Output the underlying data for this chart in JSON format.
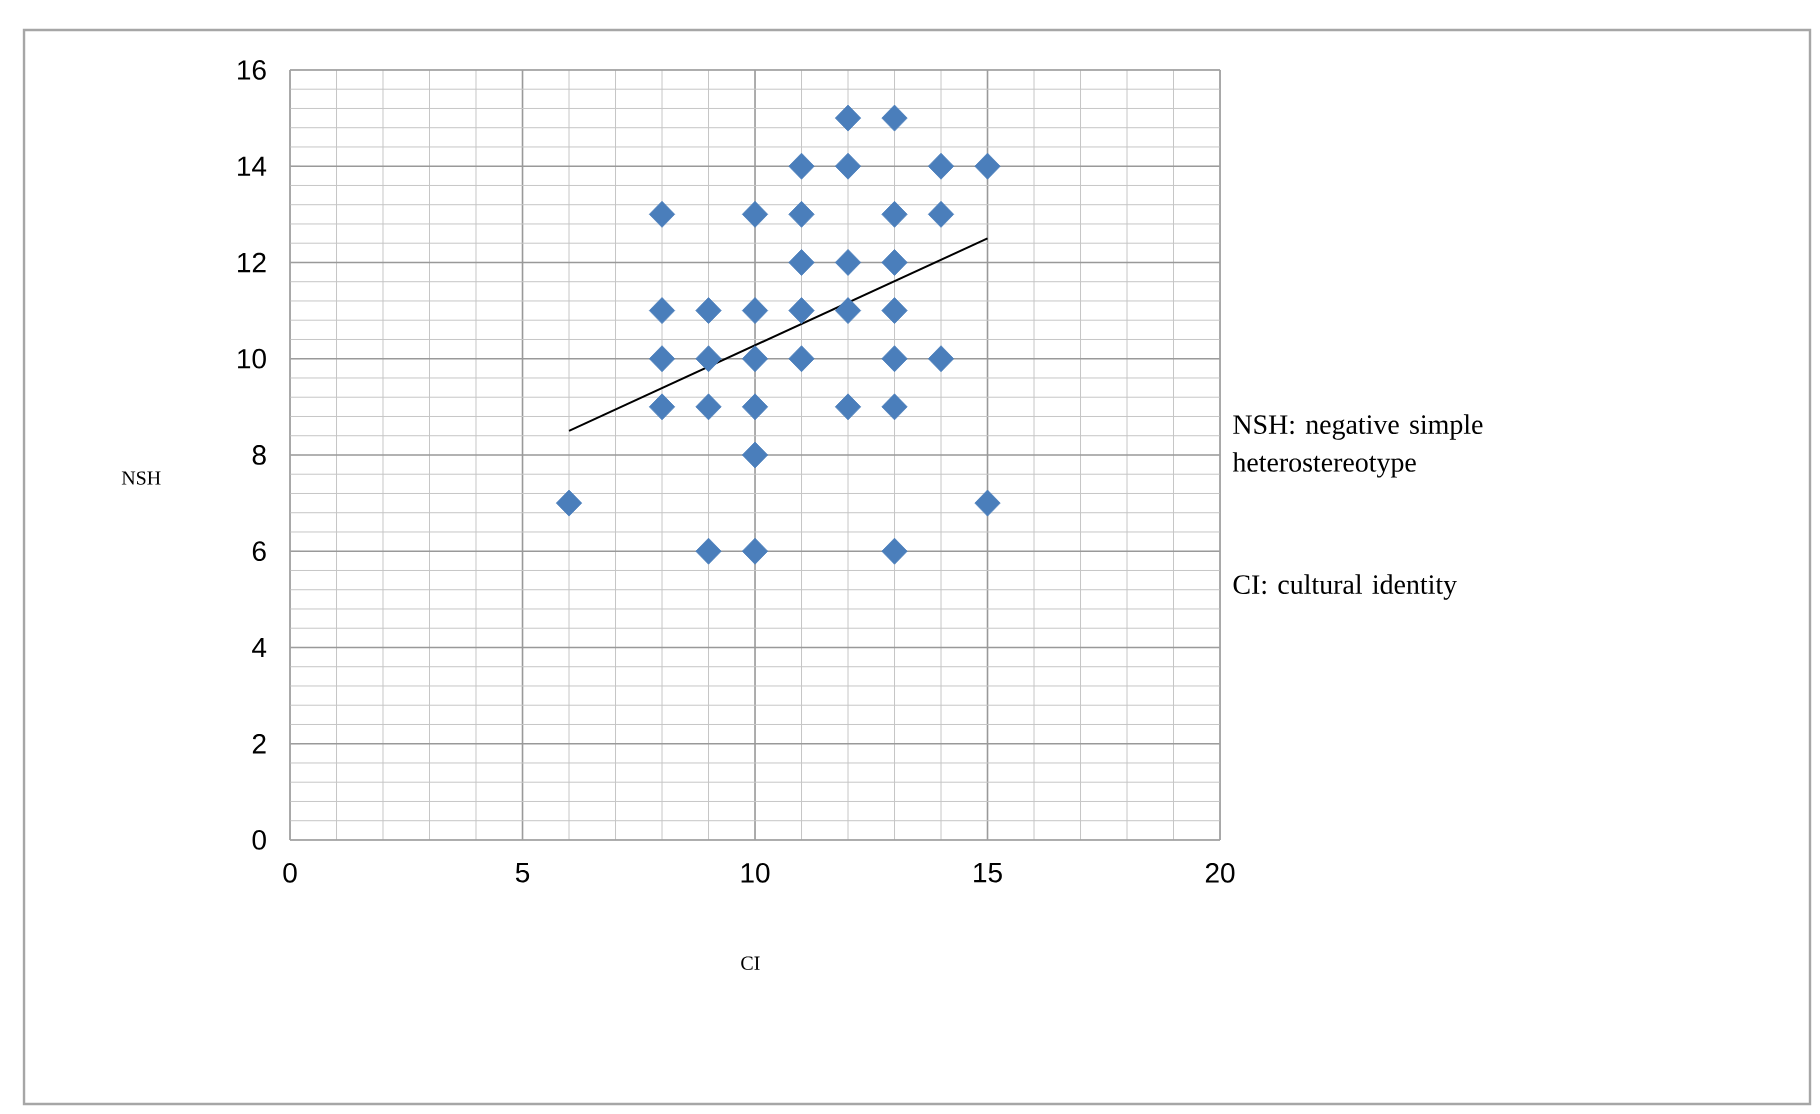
{
  "chart_data": {
    "type": "scatter",
    "xlabel": "CI",
    "ylabel": "NSH",
    "annotations": [
      "NSH: negative simple heterostereotype",
      "CI: cultural identity"
    ],
    "xlim": [
      0,
      20
    ],
    "xticks": [
      0,
      5,
      10,
      15,
      20
    ],
    "ylim": [
      0,
      16
    ],
    "yticks": [
      0,
      2,
      4,
      6,
      8,
      10,
      12,
      14,
      16
    ],
    "grid": true,
    "marker": "diamond",
    "series": [
      {
        "color": "#4a7ebb",
        "x": [
          12,
          13,
          11,
          12,
          14,
          15,
          8,
          10,
          11,
          13,
          14,
          11,
          12,
          13,
          8,
          9,
          10,
          11,
          12,
          13,
          8,
          9,
          10,
          11,
          13,
          14,
          8,
          9,
          10,
          12,
          13,
          10,
          6,
          15,
          9,
          10,
          13
        ],
        "values": [
          15,
          15,
          14,
          14,
          14,
          14,
          13,
          13,
          13,
          13,
          13,
          12,
          12,
          12,
          11,
          11,
          11,
          11,
          11,
          11,
          10,
          10,
          10,
          10,
          10,
          10,
          9,
          9,
          9,
          9,
          9,
          8,
          7,
          7,
          6,
          6,
          6
        ]
      },
      {
        "type": "line",
        "color": "#000000",
        "marker": "none",
        "x": [
          6,
          15
        ],
        "values": [
          8.5,
          12.5
        ]
      }
    ]
  }
}
